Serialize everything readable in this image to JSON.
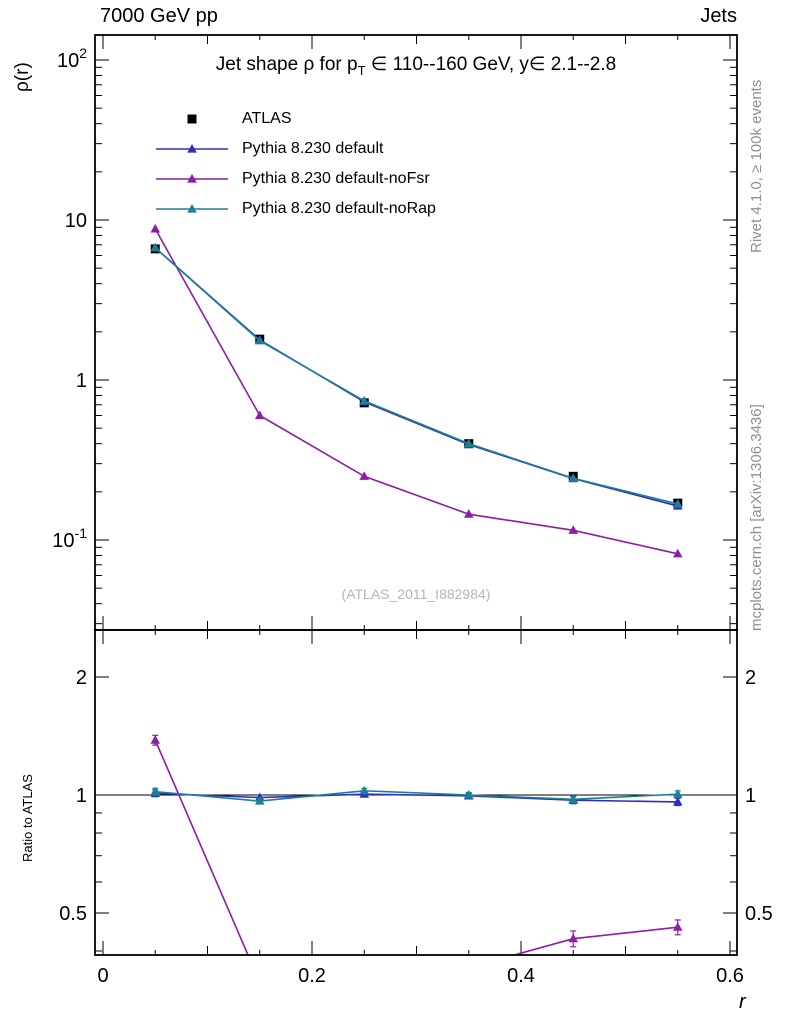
{
  "header": {
    "left": "7000 GeV pp",
    "right": "Jets"
  },
  "title": {
    "pre": "Jet shape ρ for p",
    "sub": "T",
    "post": " ∈ 110--160 GeV, y∈ 2.1--2.8"
  },
  "axes": {
    "x_label": "r",
    "y_label_main": "ρ(r)",
    "y_label_ratio": "Ratio to ATLAS",
    "x_ticks": [
      0,
      0.2,
      0.4,
      0.6
    ],
    "x_tick_labels": [
      "0",
      "0.2",
      "0.4",
      "0.6"
    ]
  },
  "credits": {
    "right_top": "Rivet 4.1.0, ≥ 100k events",
    "right_bottom": "mcplots.cern.ch [arXiv:1306.3436]"
  },
  "watermark": "(ATLAS_2011_I882984)",
  "chart_data": {
    "type": "line",
    "title": "Jet shape ρ for p_T ∈ 110--160 GeV, y∈ 2.1--2.8",
    "xlabel": "r",
    "ylabel": "ρ(r)",
    "ylabel_ratio": "Ratio to ATLAS",
    "x": [
      0.05,
      0.15,
      0.25,
      0.35,
      0.45,
      0.55
    ],
    "xlim": [
      -0.008,
      0.607
    ],
    "main": {
      "ylog": true,
      "ylim": [
        0.027,
        145
      ],
      "yticks_major": [
        0.1,
        1,
        10,
        100
      ],
      "series": [
        {
          "name": "ATLAS",
          "color": "#000000",
          "marker": "square",
          "line": false,
          "values": [
            6.6,
            1.8,
            0.72,
            0.4,
            0.25,
            0.17
          ],
          "yerr": [
            0.15,
            0.04,
            0.02,
            0.012,
            0.008,
            0.006
          ]
        },
        {
          "name": "Pythia 8.230 default",
          "color": "#2e2ec0",
          "marker": "triangle",
          "line": true,
          "values": [
            6.7,
            1.78,
            0.73,
            0.395,
            0.242,
            0.163
          ]
        },
        {
          "name": "Pythia 8.230 default-noFsr",
          "color": "#8d1da6",
          "marker": "triangle",
          "line": true,
          "values": [
            8.8,
            0.6,
            0.25,
            0.145,
            0.115,
            0.082
          ]
        },
        {
          "name": "Pythia 8.230 default-noRap",
          "color": "#1d7f96",
          "marker": "triangle",
          "line": true,
          "values": [
            6.7,
            1.76,
            0.74,
            0.4,
            0.243,
            0.168
          ]
        }
      ]
    },
    "ratio": {
      "ylog": true,
      "ylim": [
        0.397,
        2.64
      ],
      "yticks_major": [
        0.5,
        1,
        2
      ],
      "baseline": 1,
      "series": [
        {
          "name": "Pythia 8.230 default",
          "color": "#2e2ec0",
          "values": [
            1.01,
            0.985,
            1.005,
            0.995,
            0.97,
            0.96
          ],
          "yerr": [
            0.02,
            0.015,
            0.015,
            0.015,
            0.02,
            0.02
          ]
        },
        {
          "name": "Pythia 8.230 default-noFsr",
          "color": "#8d1da6",
          "values": [
            1.38,
            0.333,
            0.347,
            0.363,
            0.43,
            0.46
          ],
          "yerr": [
            0.04,
            0.012,
            0.012,
            0.015,
            0.02,
            0.02
          ]
        },
        {
          "name": "Pythia 8.230 default-noRap",
          "color": "#1d7f96",
          "values": [
            1.02,
            0.965,
            1.025,
            1.0,
            0.975,
            1.005
          ],
          "yerr": [
            0.02,
            0.015,
            0.015,
            0.015,
            0.02,
            0.02
          ]
        }
      ]
    }
  }
}
